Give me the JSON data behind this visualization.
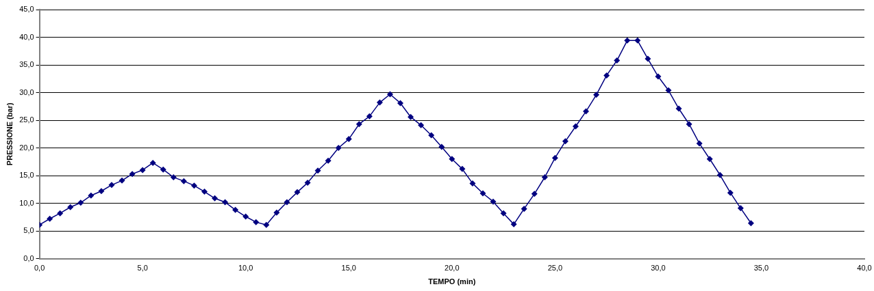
{
  "chart_data": {
    "type": "line",
    "xlabel": "TEMPO (min)",
    "ylabel": "PRESSIONE (bar)",
    "x": [
      0,
      0.5,
      1,
      1.5,
      2,
      2.5,
      3,
      3.5,
      4,
      4.5,
      5,
      5.5,
      6,
      6.5,
      7,
      7.5,
      8,
      8.5,
      9,
      9.5,
      10,
      10.5,
      11,
      11.5,
      12,
      12.5,
      13,
      13.5,
      14,
      14.5,
      15,
      15.5,
      16,
      16.5,
      17,
      17.5,
      18,
      18.5,
      19,
      19.5,
      20,
      20.5,
      21,
      21.5,
      22,
      22.5,
      23,
      23.5,
      24,
      24.5,
      25,
      25.5,
      26,
      26.5,
      27,
      27.5,
      28,
      28.5,
      29,
      29.5,
      30,
      30.5,
      31,
      31.5,
      32,
      32.5,
      33,
      33.5,
      34,
      34.5
    ],
    "series": [
      {
        "color": "#000080",
        "values": [
          6.1,
          7.2,
          8.2,
          9.3,
          10.1,
          11.4,
          12.2,
          13.3,
          14.1,
          15.3,
          16.0,
          17.3,
          16.1,
          14.7,
          14.0,
          13.2,
          12.1,
          10.9,
          10.2,
          8.8,
          7.6,
          6.6,
          6.1,
          8.3,
          10.2,
          12.0,
          13.7,
          15.9,
          17.7,
          20.0,
          21.6,
          24.3,
          25.7,
          28.2,
          29.7,
          28.1,
          25.6,
          24.1,
          22.3,
          20.2,
          18.0,
          16.2,
          13.6,
          11.8,
          10.3,
          8.2,
          6.2,
          9.0,
          11.7,
          14.7,
          18.2,
          21.2,
          23.9,
          26.6,
          29.6,
          33.1,
          35.8,
          39.4,
          39.4,
          36.1,
          32.9,
          30.4,
          27.1,
          24.3,
          20.8,
          18.0,
          15.1,
          11.9,
          9.1,
          6.4
        ]
      }
    ],
    "xlim": [
      0,
      40
    ],
    "xticks": [
      {
        "value": 0,
        "label": "0,0"
      },
      {
        "value": 5,
        "label": "5,0"
      },
      {
        "value": 10,
        "label": "10,0"
      },
      {
        "value": 15,
        "label": "15,0"
      },
      {
        "value": 20,
        "label": "20,0"
      },
      {
        "value": 25,
        "label": "25,0"
      },
      {
        "value": 30,
        "label": "30,0"
      },
      {
        "value": 35,
        "label": "35,0"
      },
      {
        "value": 40,
        "label": "40,0"
      }
    ],
    "ylim": [
      0,
      45
    ],
    "yticks": [
      {
        "value": 0,
        "label": "0,0"
      },
      {
        "value": 5,
        "label": "5,0"
      },
      {
        "value": 10,
        "label": "10,0"
      },
      {
        "value": 15,
        "label": "15,0"
      },
      {
        "value": 20,
        "label": "20,0"
      },
      {
        "value": 25,
        "label": "25,0"
      },
      {
        "value": 30,
        "label": "30,0"
      },
      {
        "value": 35,
        "label": "35,0"
      },
      {
        "value": 40,
        "label": "40,0"
      },
      {
        "value": 45,
        "label": "45,0"
      }
    ],
    "grid": "y",
    "legend": false,
    "marker": "diamond",
    "line_style": "solid"
  }
}
